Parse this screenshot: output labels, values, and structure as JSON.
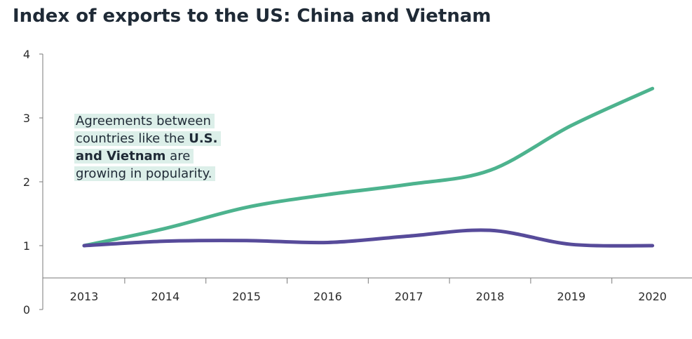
{
  "chart_data": {
    "type": "line",
    "title": "Index of exports to the US: China and Vietnam",
    "x": [
      "2013",
      "2014",
      "2015",
      "2016",
      "2017",
      "2018",
      "2019",
      "2020"
    ],
    "ylim": [
      0,
      4
    ],
    "y_ticks": [
      "0",
      "1",
      "2",
      "3",
      "4"
    ],
    "grid": false,
    "legend": "none",
    "series": [
      {
        "color": "#4db38e",
        "values": [
          1.0,
          1.27,
          1.6,
          1.8,
          1.96,
          2.18,
          2.88,
          3.46
        ]
      },
      {
        "color": "#574b9a",
        "values": [
          1.0,
          1.07,
          1.08,
          1.05,
          1.15,
          1.24,
          1.02,
          1.0
        ]
      }
    ],
    "annotation": {
      "line1": "Agreements between",
      "line2_pre": "countries like the ",
      "line2_bold": "U.S.",
      "line3_bold": "and Vietnam",
      "line3_post": " are",
      "line4": "growing in popularity."
    }
  }
}
